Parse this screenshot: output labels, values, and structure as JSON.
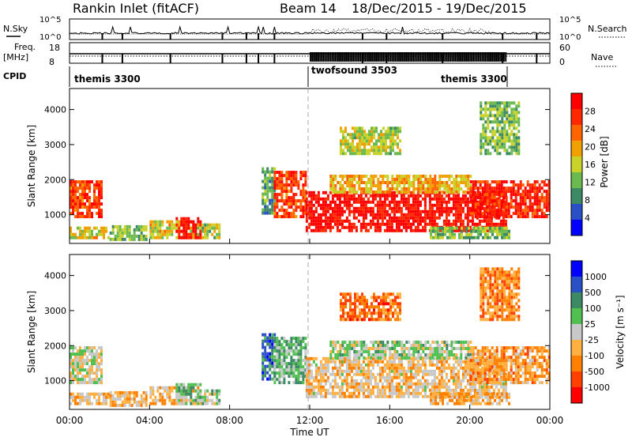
{
  "header": {
    "station": "Rankin Inlet (fitACF)",
    "beam": "Beam 14",
    "dates": "18/Dec/2015 - 19/Dec/2015"
  },
  "strip_labels": {
    "nsky": "N.Sky",
    "nsky_ticks": [
      "10^5",
      "10^0"
    ],
    "nsearch": "N.Search",
    "nsearch_ticks": [
      "10^5",
      "10^0"
    ],
    "freq": "Freq.",
    "freq_unit": "[MHz]",
    "freq_ticks": [
      "18",
      "8"
    ],
    "nave": "Nave",
    "nave_ticks": [
      "60",
      "0"
    ],
    "cpid": "CPID"
  },
  "cpid_segments": [
    {
      "name": "themis 3300",
      "start_hour": 0,
      "end_hour": 12
    },
    {
      "name": "twofsound 3503",
      "start_hour": 12,
      "end_hour": 22
    },
    {
      "name": "themis 3300",
      "start_hour": 18.8,
      "end_hour": 22
    }
  ],
  "colors": {
    "power": [
      "#0000ff",
      "#2a50c8",
      "#3c8a64",
      "#6aba50",
      "#c8d228",
      "#f0a000",
      "#ff6400",
      "#ff2800",
      "#ff0000"
    ],
    "velocity": [
      "#ff0000",
      "#ff4000",
      "#ff8000",
      "#ffb040",
      "#c8c8c8",
      "#50c050",
      "#3c8a64",
      "#2a50c8",
      "#0000ff"
    ]
  },
  "chart_data": [
    {
      "type": "heatmap",
      "panel": "power",
      "ylabel": "Slant Range [km]",
      "yticks": [
        1000,
        2000,
        3000,
        4000
      ],
      "ylim": [
        180,
        4600
      ],
      "xlim": [
        0,
        24
      ],
      "colorbar_label": "Power [dB]",
      "colorbar_ticks": [
        "28",
        "24",
        "20",
        "16",
        "12",
        "8",
        "4"
      ],
      "clim": [
        0,
        30
      ],
      "regions": [
        {
          "h0": 0.0,
          "h1": 1.6,
          "r0": 900,
          "r1": 1900,
          "v": 24
        },
        {
          "h0": 0.0,
          "h1": 2.0,
          "r0": 300,
          "r1": 650,
          "v": 16
        },
        {
          "h0": 2.0,
          "h1": 3.8,
          "r0": 250,
          "r1": 650,
          "v": 12
        },
        {
          "h0": 4.0,
          "h1": 6.5,
          "r0": 300,
          "r1": 800,
          "v": 16
        },
        {
          "h0": 5.3,
          "h1": 6.6,
          "r0": 300,
          "r1": 900,
          "v": 28
        },
        {
          "h0": 6.6,
          "h1": 7.5,
          "r0": 300,
          "r1": 700,
          "v": 14
        },
        {
          "h0": 9.6,
          "h1": 10.2,
          "r0": 1000,
          "r1": 2300,
          "v": 10
        },
        {
          "h0": 10.2,
          "h1": 11.8,
          "r0": 900,
          "r1": 2200,
          "v": 24
        },
        {
          "h0": 11.8,
          "h1": 21.8,
          "r0": 500,
          "r1": 1600,
          "v": 28
        },
        {
          "h0": 13.0,
          "h1": 20.0,
          "r0": 1600,
          "r1": 2100,
          "v": 18
        },
        {
          "h0": 20.0,
          "h1": 24.0,
          "r0": 900,
          "r1": 1900,
          "v": 26
        },
        {
          "h0": 18.0,
          "h1": 22.0,
          "r0": 300,
          "r1": 600,
          "v": 12
        },
        {
          "h0": 13.5,
          "h1": 16.5,
          "r0": 2700,
          "r1": 3500,
          "v": 14
        },
        {
          "h0": 20.5,
          "h1": 22.5,
          "r0": 2700,
          "r1": 4200,
          "v": 12
        }
      ]
    },
    {
      "type": "heatmap",
      "panel": "velocity",
      "ylabel": "Slant Range [km]",
      "yticks": [
        1000,
        2000,
        3000,
        4000
      ],
      "ylim": [
        180,
        4600
      ],
      "xlim": [
        0,
        24
      ],
      "xlabel": "Time UT",
      "xticks": [
        "00:00",
        "04:00",
        "08:00",
        "12:00",
        "16:00",
        "20:00",
        "00:00"
      ],
      "colorbar_label": "Velocity [m s⁻¹]",
      "colorbar_ticks": [
        "1000",
        "500",
        "100",
        "25",
        "-25",
        "-100",
        "-500",
        "-1000"
      ],
      "clim": [
        -1200,
        1200
      ],
      "regions": [
        {
          "h0": 0.0,
          "h1": 1.6,
          "r0": 900,
          "r1": 1900,
          "v": 20
        },
        {
          "h0": 0.0,
          "h1": 2.0,
          "r0": 300,
          "r1": 650,
          "v": -200
        },
        {
          "h0": 2.0,
          "h1": 3.8,
          "r0": 250,
          "r1": 650,
          "v": -300
        },
        {
          "h0": 4.0,
          "h1": 6.5,
          "r0": 300,
          "r1": 800,
          "v": -300
        },
        {
          "h0": 5.3,
          "h1": 6.6,
          "r0": 300,
          "r1": 900,
          "v": 200
        },
        {
          "h0": 6.6,
          "h1": 7.5,
          "r0": 300,
          "r1": 700,
          "v": 150
        },
        {
          "h0": 9.6,
          "h1": 10.2,
          "r0": 1000,
          "r1": 2300,
          "v": 700
        },
        {
          "h0": 10.2,
          "h1": 11.8,
          "r0": 900,
          "r1": 2200,
          "v": 300
        },
        {
          "h0": 11.8,
          "h1": 21.8,
          "r0": 500,
          "r1": 1600,
          "v": -200
        },
        {
          "h0": 13.0,
          "h1": 20.0,
          "r0": 1600,
          "r1": 2100,
          "v": 100
        },
        {
          "h0": 20.0,
          "h1": 24.0,
          "r0": 900,
          "r1": 1900,
          "v": -400
        },
        {
          "h0": 18.0,
          "h1": 22.0,
          "r0": 300,
          "r1": 600,
          "v": -300
        },
        {
          "h0": 13.5,
          "h1": 16.5,
          "r0": 2700,
          "r1": 3500,
          "v": -600
        },
        {
          "h0": 20.5,
          "h1": 22.5,
          "r0": 2700,
          "r1": 4200,
          "v": -500
        }
      ]
    }
  ]
}
